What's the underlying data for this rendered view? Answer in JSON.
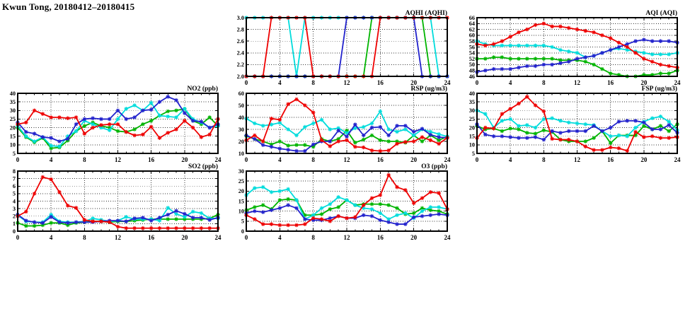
{
  "page": {
    "title": "Kwun Tong, 20180412–20180415"
  },
  "chart_data": [
    {
      "id": "aqhi",
      "type": "line",
      "title": "AQHI (AQHI)",
      "xlim": [
        0,
        24
      ],
      "ylim": [
        2.0,
        3.0
      ],
      "xticks": [
        0,
        4,
        8,
        12,
        16,
        20,
        24
      ],
      "xtick_labels": [
        "0",
        "4",
        "8",
        "12",
        "16",
        "20",
        "24"
      ],
      "yticks": [
        2.0,
        2.2,
        2.4,
        2.6,
        2.8,
        3.0
      ],
      "ytick_labels": [
        "2.0",
        "2.2",
        "2.4",
        "2.6",
        "2.8",
        "3.0"
      ],
      "grid": "dotted",
      "legend": "none",
      "series": [
        {
          "name": "green",
          "color": "#00b400",
          "values": [
            2,
            2,
            2,
            2,
            2,
            2,
            2,
            2,
            2,
            2,
            2,
            2,
            2,
            2,
            2,
            3,
            3,
            3,
            3,
            3,
            3,
            3,
            2,
            2,
            2
          ]
        },
        {
          "name": "cyan",
          "color": "#00dcdc",
          "values": [
            3,
            3,
            3,
            3,
            3,
            3,
            2,
            3,
            3,
            3,
            3,
            3,
            3,
            3,
            3,
            3,
            3,
            3,
            3,
            3,
            3,
            3,
            3,
            2,
            2
          ]
        },
        {
          "name": "blue",
          "color": "#2222cc",
          "values": [
            2,
            2,
            2,
            2,
            2,
            2,
            2,
            2,
            2,
            2,
            2,
            2,
            3,
            3,
            3,
            3,
            3,
            3,
            3,
            3,
            3,
            2,
            2,
            2,
            2
          ]
        },
        {
          "name": "red",
          "color": "#ee0000",
          "values": [
            2,
            2,
            2,
            3,
            3,
            3,
            3,
            3,
            2,
            2,
            2,
            2,
            2,
            2,
            2,
            2,
            3,
            3,
            3,
            3,
            3,
            3,
            3,
            3,
            3
          ]
        }
      ]
    },
    {
      "id": "aqi",
      "type": "line",
      "title": "AQI (AQI)",
      "xlim": [
        0,
        24
      ],
      "ylim": [
        46,
        66
      ],
      "xticks": [
        0,
        4,
        8,
        12,
        16,
        20,
        24
      ],
      "xtick_labels": [
        "0",
        "4",
        "8",
        "12",
        "16",
        "20",
        "24"
      ],
      "yticks": [
        46,
        48,
        50,
        52,
        54,
        56,
        58,
        60,
        62,
        64,
        66
      ],
      "ytick_labels": [
        "46",
        "48",
        "50",
        "52",
        "54",
        "56",
        "58",
        "60",
        "62",
        "64",
        "66"
      ],
      "grid": "dotted",
      "legend": "none",
      "series": [
        {
          "name": "green",
          "color": "#00b400",
          "values": [
            52,
            52,
            52.5,
            52.5,
            52,
            52,
            52,
            52,
            52,
            52,
            51.5,
            51.5,
            51.5,
            51,
            50,
            48.5,
            47,
            46.5,
            46,
            46,
            46.5,
            46.5,
            47,
            47,
            48
          ]
        },
        {
          "name": "cyan",
          "color": "#00dcdc",
          "values": [
            58,
            57,
            56.5,
            56.5,
            56.5,
            56.5,
            56.5,
            56.5,
            56.5,
            56,
            55,
            54.5,
            54,
            52.5,
            53,
            54,
            55,
            55.5,
            55,
            54.5,
            54,
            53.5,
            53.5,
            53.5,
            54
          ]
        },
        {
          "name": "blue",
          "color": "#2222cc",
          "values": [
            47.5,
            48,
            48.5,
            48.5,
            48.5,
            49,
            49.5,
            49.5,
            50,
            50,
            50.5,
            51,
            52,
            52.5,
            53,
            54,
            55,
            56,
            57,
            58,
            58.5,
            58,
            58,
            58,
            57.5
          ]
        },
        {
          "name": "red",
          "color": "#ee0000",
          "values": [
            57,
            56.5,
            57,
            58,
            59.5,
            61,
            62,
            63.5,
            64,
            63,
            63,
            62.5,
            62,
            61.5,
            61,
            60,
            59,
            57.5,
            56,
            54,
            52,
            51,
            50,
            49.5,
            49
          ]
        }
      ]
    },
    {
      "id": "no2",
      "type": "line",
      "title": "NO2 (ppb)",
      "xlim": [
        0,
        24
      ],
      "ylim": [
        5,
        40
      ],
      "xticks": [
        0,
        4,
        8,
        12,
        16,
        20,
        24
      ],
      "xtick_labels": [
        "0",
        "4",
        "8",
        "12",
        "16",
        "20",
        "24"
      ],
      "yticks": [
        5,
        10,
        15,
        20,
        25,
        30,
        35,
        40
      ],
      "ytick_labels": [
        "5",
        "10",
        "15",
        "20",
        "25",
        "30",
        "35",
        "40"
      ],
      "grid": "dotted",
      "legend": "none",
      "series": [
        {
          "name": "green",
          "color": "#00b400",
          "values": [
            20,
            14.5,
            11.5,
            14,
            8,
            8.5,
            12.5,
            18,
            21,
            23,
            21,
            20,
            18,
            17.5,
            19,
            22,
            24,
            27,
            29.5,
            30,
            31,
            24,
            22,
            26,
            21
          ]
        },
        {
          "name": "cyan",
          "color": "#00dcdc",
          "values": [
            21,
            15,
            12,
            14.5,
            9.5,
            9,
            15,
            18,
            24,
            22,
            20,
            18.5,
            25,
            31,
            33,
            30,
            34.5,
            27,
            26.5,
            26,
            31,
            25,
            23,
            20,
            21
          ]
        },
        {
          "name": "blue",
          "color": "#2222cc",
          "values": [
            23,
            17.5,
            16.5,
            14.5,
            14,
            12,
            13.5,
            22,
            25,
            25.5,
            25,
            25,
            30,
            25,
            26,
            30,
            30.5,
            35,
            38,
            36,
            28.5,
            24,
            23.5,
            20,
            22
          ]
        },
        {
          "name": "red",
          "color": "#ee0000",
          "values": [
            22,
            23,
            30,
            28,
            26,
            26,
            25.5,
            26,
            16.5,
            20,
            21.5,
            22,
            22,
            17.5,
            15.5,
            16,
            20.5,
            14,
            17,
            19,
            24,
            20,
            14.5,
            16,
            25
          ]
        }
      ]
    },
    {
      "id": "rsp",
      "type": "line",
      "title": "RSP (ug/m3)",
      "xlim": [
        0,
        24
      ],
      "ylim": [
        10,
        60
      ],
      "xticks": [
        0,
        4,
        8,
        12,
        16,
        20,
        24
      ],
      "xtick_labels": [
        "0",
        "4",
        "8",
        "12",
        "16",
        "20",
        "24"
      ],
      "yticks": [
        10,
        20,
        30,
        40,
        50,
        60
      ],
      "ytick_labels": [
        "10",
        "20",
        "30",
        "40",
        "50",
        "60"
      ],
      "grid": "dotted",
      "legend": "none",
      "series": [
        {
          "name": "green",
          "color": "#00b400",
          "values": [
            24.5,
            22,
            20,
            17.5,
            20,
            16.5,
            17,
            17,
            15.5,
            22,
            20,
            22,
            29,
            19,
            21.5,
            25,
            21,
            20,
            20,
            19,
            25,
            20,
            25,
            21,
            24
          ]
        },
        {
          "name": "cyan",
          "color": "#00dcdc",
          "values": [
            39,
            35,
            33,
            34,
            35.5,
            30,
            25,
            32,
            35,
            38,
            30,
            31,
            27,
            31,
            32,
            35,
            45,
            30,
            28,
            30,
            25,
            30,
            28,
            26,
            24
          ]
        },
        {
          "name": "blue",
          "color": "#2222cc",
          "values": [
            25,
            22,
            17,
            15.5,
            14,
            13,
            12,
            12,
            17.5,
            20,
            20,
            29,
            24,
            34,
            25,
            31.5,
            32,
            25,
            33,
            33,
            28,
            30.5,
            25.5,
            23.5,
            23
          ]
        },
        {
          "name": "red",
          "color": "#ee0000",
          "values": [
            21,
            25,
            20,
            39,
            38,
            51,
            55,
            50,
            44,
            21,
            16,
            20,
            21,
            15.5,
            15,
            12.5,
            12,
            12.5,
            18,
            19.5,
            20,
            23.5,
            21,
            18,
            23
          ]
        }
      ]
    },
    {
      "id": "fsp",
      "type": "line",
      "title": "FSP (ug/m3)",
      "xlim": [
        0,
        24
      ],
      "ylim": [
        5,
        40
      ],
      "xticks": [
        0,
        4,
        8,
        12,
        16,
        20,
        24
      ],
      "xtick_labels": [
        "0",
        "4",
        "8",
        "12",
        "16",
        "20",
        "24"
      ],
      "yticks": [
        5,
        10,
        15,
        20,
        25,
        30,
        35,
        40
      ],
      "ytick_labels": [
        "5",
        "10",
        "15",
        "20",
        "25",
        "30",
        "35",
        "40"
      ],
      "grid": "dotted",
      "legend": "none",
      "series": [
        {
          "name": "green",
          "color": "#00b400",
          "values": [
            21,
            19,
            19.5,
            18,
            19.5,
            19,
            17,
            16.5,
            18.5,
            17.5,
            13,
            12,
            12,
            12,
            14,
            18,
            11,
            15.5,
            15.5,
            15.5,
            21,
            19,
            21,
            18,
            22
          ]
        },
        {
          "name": "cyan",
          "color": "#00dcdc",
          "values": [
            30,
            28,
            20,
            24,
            25,
            21,
            21.5,
            20,
            25,
            25.5,
            24,
            23,
            22.5,
            22,
            21.5,
            18,
            15,
            15.5,
            15,
            20,
            23.5,
            25.5,
            26.5,
            23.5,
            18.5
          ]
        },
        {
          "name": "blue",
          "color": "#2222cc",
          "values": [
            22,
            16,
            15,
            15,
            14.5,
            14,
            14,
            14.5,
            13,
            18,
            17,
            18,
            18,
            18,
            21,
            18,
            20,
            23.5,
            24,
            24,
            23,
            19,
            19,
            21.5,
            17
          ]
        },
        {
          "name": "red",
          "color": "#ee0000",
          "values": [
            14,
            20,
            19.5,
            28,
            31,
            34,
            38,
            33,
            29.5,
            13.5,
            13,
            13,
            12,
            9,
            7,
            7,
            8.5,
            8,
            6.5,
            17.5,
            14.5,
            15,
            14,
            14,
            14.5
          ]
        }
      ]
    },
    {
      "id": "so2",
      "type": "line",
      "title": "SO2 (ppb)",
      "xlim": [
        0,
        24
      ],
      "ylim": [
        0,
        8
      ],
      "xticks": [
        0,
        4,
        8,
        12,
        16,
        20,
        24
      ],
      "xtick_labels": [
        "0",
        "4",
        "8",
        "12",
        "16",
        "20",
        "24"
      ],
      "yticks": [
        0,
        1,
        2,
        3,
        4,
        5,
        6,
        7,
        8
      ],
      "ytick_labels": [
        "0",
        "1",
        "2",
        "3",
        "4",
        "5",
        "6",
        "7",
        "8"
      ],
      "grid": "dotted",
      "legend": "none",
      "series": [
        {
          "name": "green",
          "color": "#00b400",
          "values": [
            1.1,
            0.7,
            0.7,
            0.8,
            1.1,
            1.1,
            0.8,
            1.1,
            1.2,
            1.3,
            1.3,
            1.2,
            1.3,
            1.3,
            1.4,
            1.5,
            1.6,
            1.6,
            1.6,
            1.6,
            1.6,
            1.6,
            1.6,
            1.7,
            2.2
          ]
        },
        {
          "name": "cyan",
          "color": "#00dcdc",
          "values": [
            2.1,
            1.3,
            1.2,
            1.2,
            2.2,
            1.3,
            1.2,
            1.2,
            1.3,
            1.7,
            1.5,
            1.3,
            1.4,
            1.9,
            1.6,
            1.6,
            1.6,
            1.4,
            3.1,
            2.3,
            1.9,
            2.6,
            2.4,
            1.7,
            1.7
          ]
        },
        {
          "name": "blue",
          "color": "#2222cc",
          "values": [
            2.2,
            1.4,
            1.2,
            1.1,
            1.9,
            1.2,
            1.1,
            1.2,
            1.2,
            1.2,
            1.3,
            1.4,
            1.4,
            1.3,
            1.7,
            1.8,
            1.4,
            1.8,
            2.2,
            2.7,
            2.3,
            1.8,
            1.8,
            1.5,
            1.8
          ]
        },
        {
          "name": "red",
          "color": "#ee0000",
          "values": [
            2,
            2.6,
            5,
            7.2,
            6.9,
            5.2,
            3.4,
            3.1,
            1.5,
            1.3,
            1.3,
            1.2,
            0.6,
            0.4,
            0.4,
            0.4,
            0.4,
            0.4,
            0.4,
            0.4,
            0.4,
            0.4,
            0.4,
            0.4,
            0.4
          ]
        }
      ]
    },
    {
      "id": "o3",
      "type": "line",
      "title": "O3 (ppb)",
      "xlim": [
        0,
        24
      ],
      "ylim": [
        0,
        30
      ],
      "xticks": [
        0,
        4,
        8,
        12,
        16,
        20,
        24
      ],
      "xtick_labels": [
        "0",
        "4",
        "8",
        "12",
        "16",
        "20",
        "24"
      ],
      "yticks": [
        0,
        5,
        10,
        15,
        20,
        25,
        30
      ],
      "ytick_labels": [
        "0",
        "5",
        "10",
        "15",
        "20",
        "25",
        "30"
      ],
      "grid": "dotted",
      "legend": "none",
      "series": [
        {
          "name": "green",
          "color": "#00b400",
          "values": [
            10.5,
            12,
            13,
            11,
            15.5,
            16,
            15.5,
            8,
            8,
            8.5,
            11,
            12,
            15.5,
            13,
            13.5,
            13.5,
            13.5,
            13,
            11.5,
            8.5,
            9,
            11.5,
            10.5,
            10,
            8.5
          ]
        },
        {
          "name": "cyan",
          "color": "#00dcdc",
          "values": [
            18,
            21.5,
            22,
            19.5,
            20,
            21,
            15.5,
            6,
            8,
            11.5,
            13.5,
            17,
            15.5,
            13,
            11.5,
            11,
            9,
            6,
            8,
            9,
            6.5,
            10,
            12,
            12,
            11
          ]
        },
        {
          "name": "blue",
          "color": "#2222cc",
          "values": [
            9,
            10,
            9.5,
            10.5,
            11.5,
            13,
            11.5,
            6,
            5.5,
            5.5,
            6.5,
            7.5,
            6.5,
            6.5,
            8,
            7.5,
            5.5,
            4.5,
            3.5,
            3.5,
            7,
            7.5,
            8,
            8.5,
            8
          ]
        },
        {
          "name": "red",
          "color": "#ee0000",
          "values": [
            8,
            6,
            3.5,
            3.5,
            3,
            3,
            3,
            3.5,
            6.5,
            6,
            5,
            7.5,
            6.5,
            7,
            13,
            16.5,
            18,
            28,
            22,
            20.5,
            14,
            16.5,
            19.5,
            19,
            11
          ]
        }
      ]
    }
  ]
}
